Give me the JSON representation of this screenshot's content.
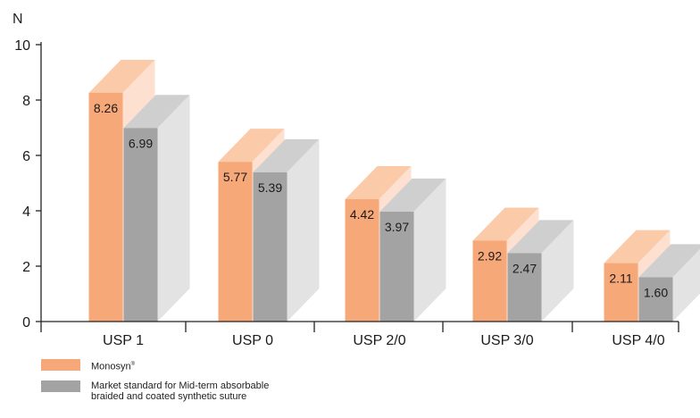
{
  "chart_data": {
    "type": "bar",
    "title": "",
    "ylabel": "N",
    "xlabel": "",
    "ylim": [
      0,
      10
    ],
    "yticks": [
      "0",
      "2",
      "4",
      "6",
      "8",
      "10"
    ],
    "categories": [
      "USP 1",
      "USP 0",
      "USP 2/0",
      "USP 3/0",
      "USP 4/0"
    ],
    "series": [
      {
        "name": "Monosyn",
        "name_mark": "®",
        "values": [
          8.26,
          5.77,
          4.42,
          2.92,
          2.11
        ],
        "labels": [
          "8.26",
          "5.77",
          "4.42",
          "2.92",
          "2.11"
        ]
      },
      {
        "name": "Market standard for Mid-term absorbable",
        "name_line2": "braided and coated synthetic suture",
        "values": [
          6.99,
          5.39,
          3.97,
          2.47,
          1.6
        ],
        "labels": [
          "6.99",
          "5.39",
          "3.97",
          "2.47",
          "1.60"
        ]
      }
    ],
    "grid": false,
    "legend": "bottom-left",
    "style": "3d-bar",
    "colors": {
      "series1": "#f7a878",
      "series1_top": "#fbcaa8",
      "series1_side": "#fde0cf",
      "series2": "#a3a3a3",
      "series2_top": "#cfcfcf",
      "series2_side": "#e3e3e3",
      "axis": "#222222"
    }
  }
}
